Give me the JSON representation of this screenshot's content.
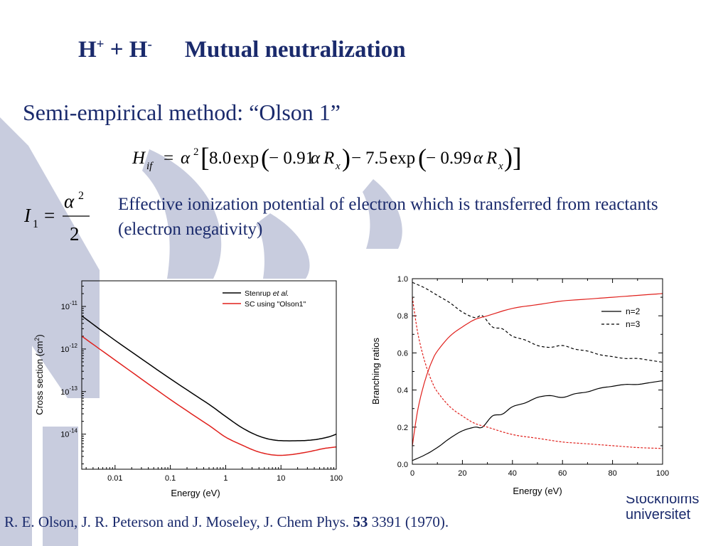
{
  "slide": {
    "title": {
      "p1": "H",
      "s1": "+",
      "p2": " + H",
      "s2": "-",
      "rest": "Mutual neutralization"
    },
    "subtitle": "Semi-empirical method: “Olson 1”",
    "formula_hif": {
      "H": "H",
      "if": "if",
      "eq": "=",
      "alpha": "α",
      "sq": "2",
      "lb": "[",
      "c1": "8.0",
      "exp1": "exp",
      "lp1": "(",
      "arg1": "− 0.91",
      "a1": "α",
      "R1": "R",
      "x1": "x",
      "rp1": ")",
      "minus": "−",
      "c2": "7.5",
      "exp2": "exp",
      "lp2": "(",
      "arg2": "− 0.99",
      "a2": "α",
      "R2": "R",
      "x2": "x",
      "rp2": ")",
      "rb": "]"
    },
    "formula_i1": {
      "I": "I",
      "sub": "1",
      "eq": "=",
      "alpha": "α",
      "sq": "2",
      "den": "2"
    },
    "description": "Effective ionization potential of electron which is transferred from reactants (electron negativity)",
    "reference": {
      "text": "R. E. Olson, J. R. Peterson and J. Moseley, J. Chem Phys. ",
      "volume": "53",
      "rest": " 3391 (1970)."
    },
    "logo": {
      "line1": "Stockholms",
      "line2": "universitet"
    }
  },
  "colors": {
    "text": "#1a2a6c",
    "logo_bg": "#c8ccde",
    "red": "#e0201c",
    "black": "#000000"
  },
  "chart_data": [
    {
      "type": "line",
      "xscale": "log",
      "yscale": "log",
      "xlabel": "Energy (eV)",
      "ylabel": {
        "pre": "Cross section (cm",
        "sup": "2",
        "post": ")"
      },
      "xlim": [
        0.0025,
        100
      ],
      "ylim": [
        1.5e-15,
        4e-11
      ],
      "xticks": [
        {
          "v": 0.01,
          "label": "0.01"
        },
        {
          "v": 0.1,
          "label": "0.1"
        },
        {
          "v": 1,
          "label": "1"
        },
        {
          "v": 10,
          "label": "10"
        },
        {
          "v": 100,
          "label": "100"
        }
      ],
      "yticks": [
        {
          "v": 1e-11,
          "base": "10",
          "exp": "-11"
        },
        {
          "v": 1e-12,
          "base": "10",
          "exp": "-12"
        },
        {
          "v": 1e-13,
          "base": "10",
          "exp": "-13"
        },
        {
          "v": 1e-14,
          "base": "10",
          "exp": "-14"
        }
      ],
      "legend_position": "top-right",
      "series": [
        {
          "name": "Stenrup et al.",
          "legend": {
            "pre": "Stenrup ",
            "ital": "et al."
          },
          "color": "#000000",
          "style": "solid",
          "points": [
            [
              0.0025,
              6e-12
            ],
            [
              0.01,
              1.6e-12
            ],
            [
              0.1,
              2e-13
            ],
            [
              0.5,
              5e-14
            ],
            [
              1,
              2.6e-14
            ],
            [
              2,
              1.4e-14
            ],
            [
              4,
              9e-15
            ],
            [
              8,
              7.2e-15
            ],
            [
              20,
              7e-15
            ],
            [
              40,
              7.4e-15
            ],
            [
              70,
              8.5e-15
            ],
            [
              100,
              1e-14
            ]
          ]
        },
        {
          "name": "SC using \"Olson1\"",
          "legend": {
            "pre": "SC using \"Olson1\"",
            "ital": ""
          },
          "color": "#e0201c",
          "style": "solid",
          "points": [
            [
              0.0025,
              2e-12
            ],
            [
              0.01,
              5.5e-13
            ],
            [
              0.1,
              6.5e-14
            ],
            [
              0.5,
              1.6e-14
            ],
            [
              1,
              8.5e-15
            ],
            [
              2,
              5.5e-15
            ],
            [
              4,
              3.8e-15
            ],
            [
              8,
              3.2e-15
            ],
            [
              15,
              3.3e-15
            ],
            [
              30,
              3.8e-15
            ],
            [
              60,
              4.6e-15
            ],
            [
              100,
              5e-15
            ]
          ]
        }
      ]
    },
    {
      "type": "line",
      "xlabel": "Energy (eV)",
      "ylabel": "Branching ratios",
      "xlim": [
        0,
        100
      ],
      "ylim": [
        0,
        1
      ],
      "xticks": [
        0,
        20,
        40,
        60,
        80,
        100
      ],
      "yticks": [
        {
          "v": 0,
          "label": "0.0"
        },
        {
          "v": 0.2,
          "label": "0.2"
        },
        {
          "v": 0.4,
          "label": "0.4"
        },
        {
          "v": 0.6,
          "label": "0.6"
        },
        {
          "v": 0.8,
          "label": "0.8"
        },
        {
          "v": 1,
          "label": "1.0"
        }
      ],
      "legend_position": "top-right",
      "series": [
        {
          "name": "n=2",
          "color": "#000000",
          "style": "solid",
          "points": [
            [
              0,
              0.02
            ],
            [
              5,
              0.05
            ],
            [
              10,
              0.09
            ],
            [
              15,
              0.14
            ],
            [
              20,
              0.18
            ],
            [
              25,
              0.2
            ],
            [
              28,
              0.2
            ],
            [
              32,
              0.26
            ],
            [
              36,
              0.27
            ],
            [
              40,
              0.31
            ],
            [
              45,
              0.33
            ],
            [
              50,
              0.36
            ],
            [
              55,
              0.37
            ],
            [
              60,
              0.36
            ],
            [
              65,
              0.38
            ],
            [
              70,
              0.39
            ],
            [
              75,
              0.41
            ],
            [
              80,
              0.42
            ],
            [
              85,
              0.43
            ],
            [
              90,
              0.43
            ],
            [
              95,
              0.44
            ],
            [
              100,
              0.45
            ]
          ]
        },
        {
          "name": "n=3",
          "color": "#000000",
          "style": "dashed",
          "points": [
            [
              0,
              0.98
            ],
            [
              5,
              0.95
            ],
            [
              10,
              0.91
            ],
            [
              15,
              0.87
            ],
            [
              20,
              0.82
            ],
            [
              25,
              0.79
            ],
            [
              28,
              0.8
            ],
            [
              32,
              0.74
            ],
            [
              36,
              0.73
            ],
            [
              40,
              0.69
            ],
            [
              45,
              0.67
            ],
            [
              50,
              0.64
            ],
            [
              55,
              0.63
            ],
            [
              60,
              0.64
            ],
            [
              65,
              0.62
            ],
            [
              70,
              0.61
            ],
            [
              75,
              0.59
            ],
            [
              80,
              0.58
            ],
            [
              85,
              0.57
            ],
            [
              90,
              0.57
            ],
            [
              95,
              0.56
            ],
            [
              100,
              0.55
            ]
          ]
        },
        {
          "name": "",
          "color": "#e0201c",
          "style": "solid",
          "points": [
            [
              0,
              0.1
            ],
            [
              2,
              0.28
            ],
            [
              4,
              0.4
            ],
            [
              6,
              0.49
            ],
            [
              8,
              0.56
            ],
            [
              10,
              0.61
            ],
            [
              15,
              0.69
            ],
            [
              20,
              0.74
            ],
            [
              25,
              0.78
            ],
            [
              30,
              0.8
            ],
            [
              40,
              0.84
            ],
            [
              50,
              0.86
            ],
            [
              60,
              0.88
            ],
            [
              70,
              0.89
            ],
            [
              80,
              0.9
            ],
            [
              90,
              0.91
            ],
            [
              100,
              0.92
            ]
          ]
        },
        {
          "name": "",
          "color": "#e0201c",
          "style": "dashed",
          "points": [
            [
              0,
              0.9
            ],
            [
              2,
              0.72
            ],
            [
              4,
              0.6
            ],
            [
              6,
              0.51
            ],
            [
              8,
              0.44
            ],
            [
              10,
              0.39
            ],
            [
              15,
              0.31
            ],
            [
              20,
              0.26
            ],
            [
              25,
              0.22
            ],
            [
              30,
              0.2
            ],
            [
              40,
              0.16
            ],
            [
              50,
              0.14
            ],
            [
              60,
              0.12
            ],
            [
              70,
              0.11
            ],
            [
              80,
              0.1
            ],
            [
              90,
              0.09
            ],
            [
              100,
              0.085
            ]
          ]
        }
      ]
    }
  ]
}
